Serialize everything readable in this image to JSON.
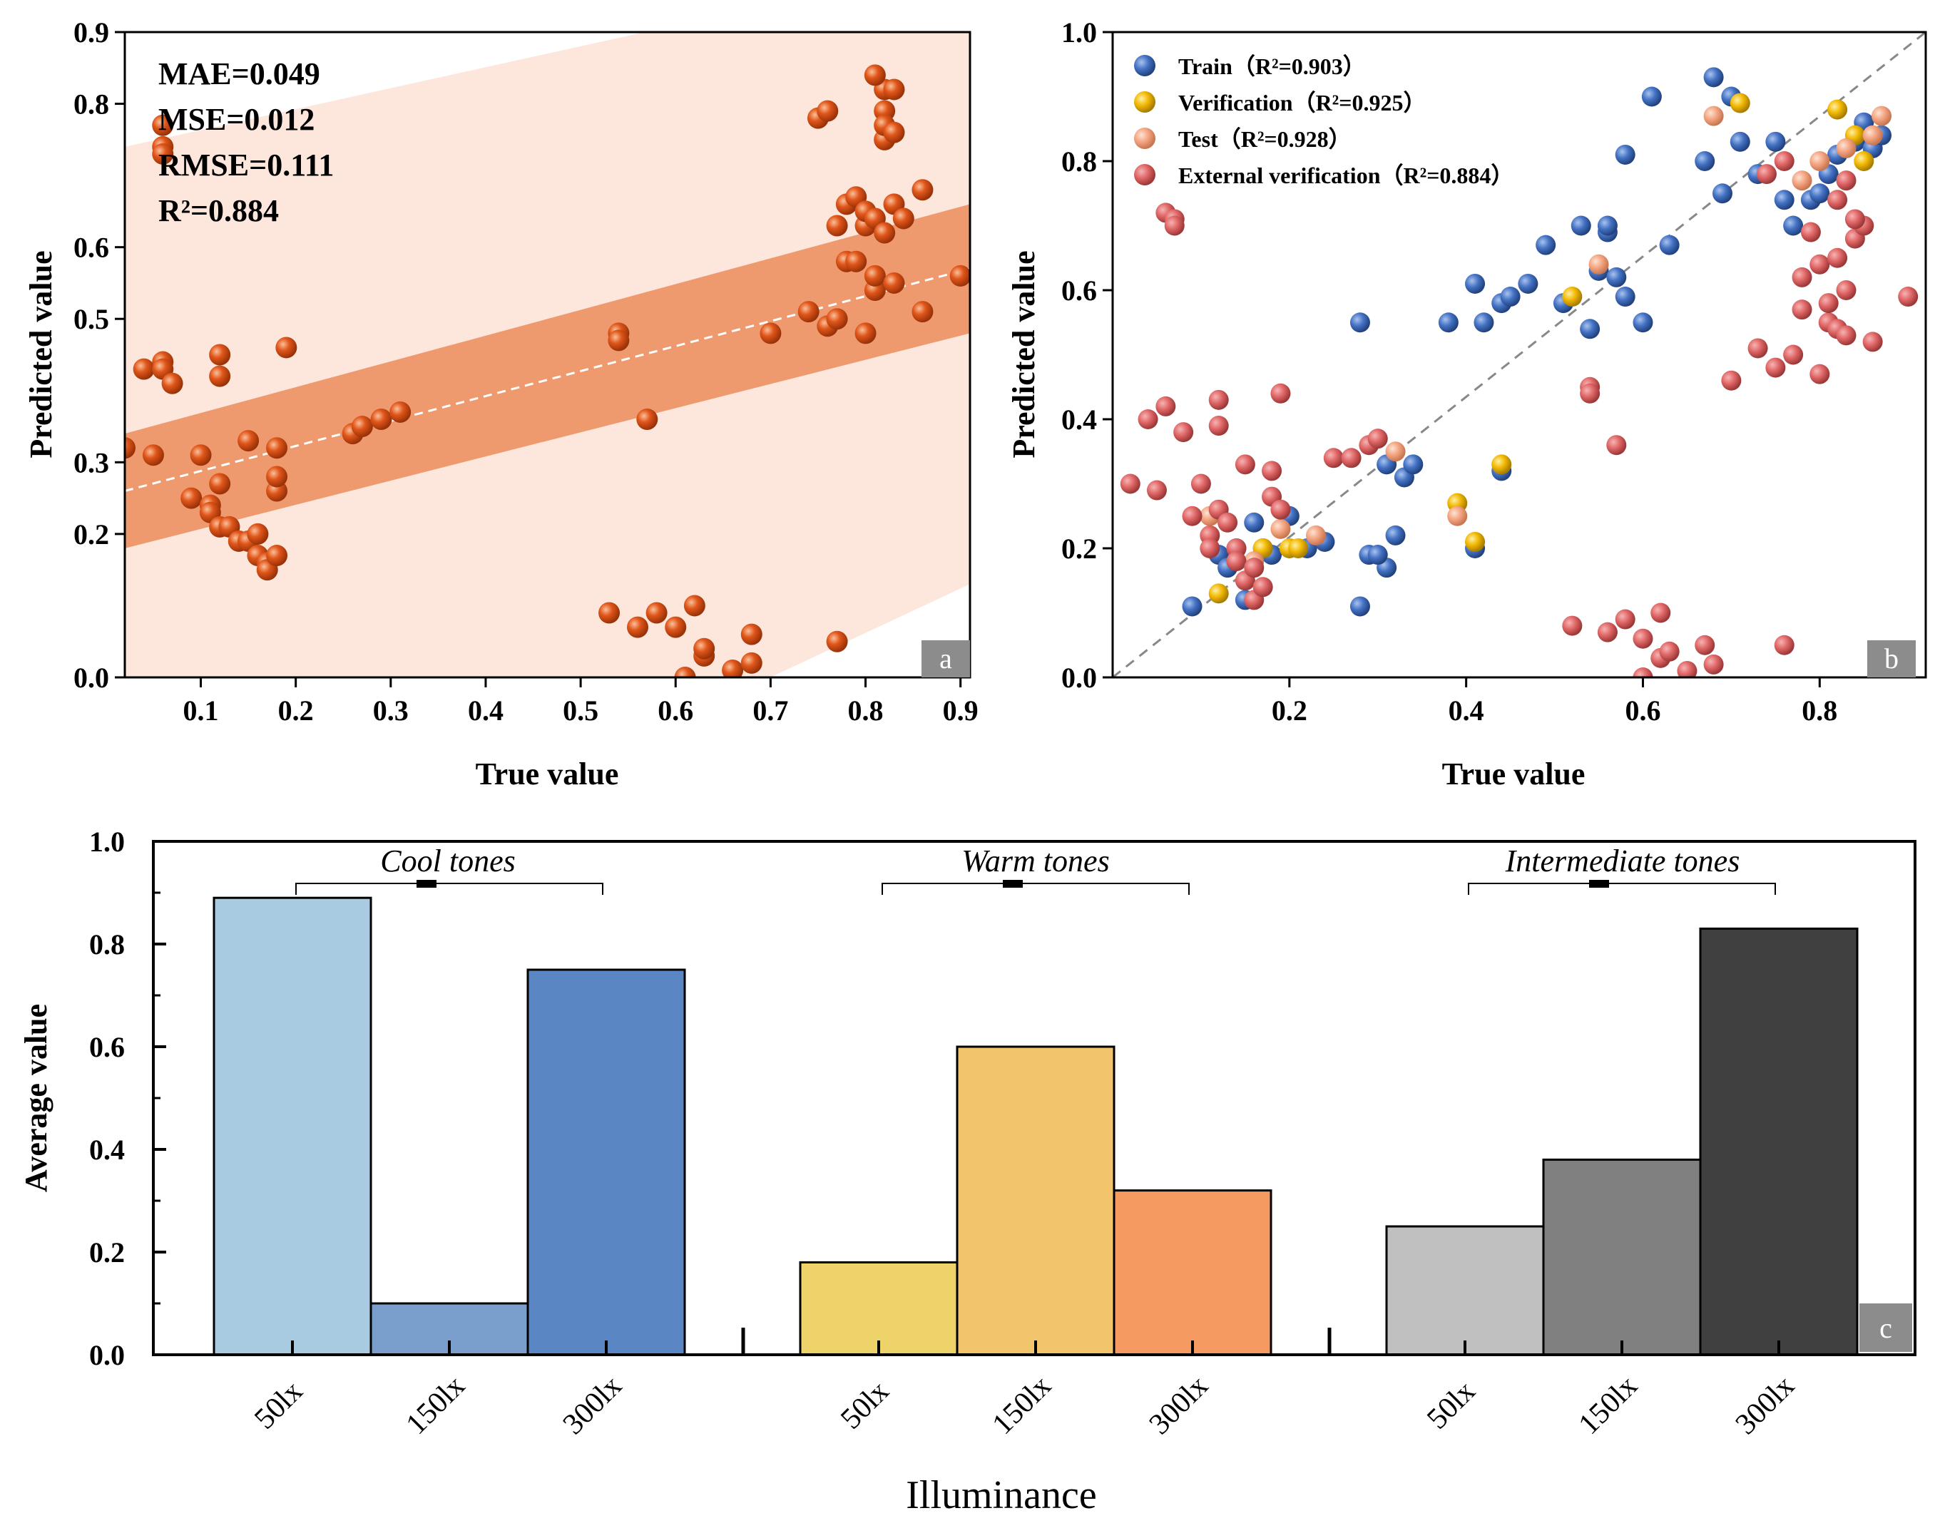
{
  "chart_data": [
    {
      "panel": "a",
      "type": "scatter",
      "xlabel": "True value",
      "ylabel": "Predicted value",
      "xlim": [
        0.02,
        0.91
      ],
      "ylim": [
        0.0,
        0.9
      ],
      "xticks": [
        "0.1",
        "0.2",
        "0.3",
        "0.4",
        "0.5",
        "0.6",
        "0.7",
        "0.8",
        "0.9"
      ],
      "yticks": [
        "0.0",
        "0.2",
        "0.3",
        "0.5",
        "0.6",
        "0.8",
        "0.9"
      ],
      "stats": {
        "mae": "MAE=0.049",
        "mse": "MSE=0.012",
        "rmse": "RMSE=0.111",
        "r2": "R²=0.884"
      },
      "panel_letter": "a",
      "colors": {
        "point": "#e0561a",
        "band_outer": "#fde7dc",
        "band_inner": "#ee9a6e",
        "fit": "#ffffff"
      },
      "fit_line": {
        "x": [
          0.02,
          0.91
        ],
        "y": [
          0.26,
          0.57
        ]
      },
      "confidence_band": {
        "x": [
          0.02,
          0.91
        ],
        "lower": [
          0.18,
          0.48
        ],
        "upper": [
          0.34,
          0.66
        ]
      },
      "prediction_band": {
        "x": [
          0.02,
          0.91
        ],
        "lower": [
          -0.42,
          0.13
        ],
        "upper": [
          0.74,
          1.0
        ]
      },
      "points": [
        [
          0.06,
          0.77
        ],
        [
          0.06,
          0.74
        ],
        [
          0.06,
          0.73
        ],
        [
          0.02,
          0.32
        ],
        [
          0.04,
          0.43
        ],
        [
          0.05,
          0.31
        ],
        [
          0.06,
          0.44
        ],
        [
          0.06,
          0.43
        ],
        [
          0.07,
          0.41
        ],
        [
          0.1,
          0.31
        ],
        [
          0.09,
          0.25
        ],
        [
          0.11,
          0.24
        ],
        [
          0.11,
          0.23
        ],
        [
          0.12,
          0.42
        ],
        [
          0.12,
          0.45
        ],
        [
          0.12,
          0.21
        ],
        [
          0.13,
          0.21
        ],
        [
          0.12,
          0.27
        ],
        [
          0.14,
          0.19
        ],
        [
          0.15,
          0.33
        ],
        [
          0.15,
          0.19
        ],
        [
          0.16,
          0.2
        ],
        [
          0.16,
          0.17
        ],
        [
          0.17,
          0.16
        ],
        [
          0.17,
          0.15
        ],
        [
          0.18,
          0.17
        ],
        [
          0.18,
          0.32
        ],
        [
          0.18,
          0.26
        ],
        [
          0.18,
          0.28
        ],
        [
          0.19,
          0.46
        ],
        [
          0.26,
          0.34
        ],
        [
          0.27,
          0.35
        ],
        [
          0.29,
          0.36
        ],
        [
          0.31,
          0.37
        ],
        [
          0.54,
          0.48
        ],
        [
          0.54,
          0.47
        ],
        [
          0.57,
          0.36
        ],
        [
          0.53,
          0.09
        ],
        [
          0.56,
          0.07
        ],
        [
          0.58,
          0.09
        ],
        [
          0.6,
          0.07
        ],
        [
          0.62,
          0.1
        ],
        [
          0.61,
          0.0
        ],
        [
          0.63,
          0.03
        ],
        [
          0.63,
          0.04
        ],
        [
          0.66,
          0.01
        ],
        [
          0.68,
          0.06
        ],
        [
          0.68,
          0.02
        ],
        [
          0.7,
          0.48
        ],
        [
          0.74,
          0.51
        ],
        [
          0.75,
          0.78
        ],
        [
          0.76,
          0.79
        ],
        [
          0.76,
          0.49
        ],
        [
          0.77,
          0.5
        ],
        [
          0.78,
          0.58
        ],
        [
          0.77,
          0.63
        ],
        [
          0.78,
          0.66
        ],
        [
          0.79,
          0.67
        ],
        [
          0.79,
          0.58
        ],
        [
          0.8,
          0.48
        ],
        [
          0.8,
          0.63
        ],
        [
          0.8,
          0.65
        ],
        [
          0.81,
          0.54
        ],
        [
          0.81,
          0.56
        ],
        [
          0.81,
          0.64
        ],
        [
          0.82,
          0.75
        ],
        [
          0.82,
          0.79
        ],
        [
          0.82,
          0.82
        ],
        [
          0.83,
          0.82
        ],
        [
          0.82,
          0.62
        ],
        [
          0.83,
          0.55
        ],
        [
          0.83,
          0.66
        ],
        [
          0.84,
          0.64
        ],
        [
          0.86,
          0.68
        ],
        [
          0.86,
          0.51
        ],
        [
          0.9,
          0.56
        ],
        [
          0.77,
          0.05
        ],
        [
          0.81,
          0.84
        ],
        [
          0.82,
          0.77
        ],
        [
          0.83,
          0.76
        ]
      ]
    },
    {
      "panel": "b",
      "type": "scatter",
      "xlabel": "True value",
      "ylabel": "Predicted value",
      "xlim": [
        0.0,
        0.92
      ],
      "ylim": [
        0.0,
        1.0
      ],
      "xticks": [
        "0.2",
        "0.4",
        "0.6",
        "0.8"
      ],
      "yticks": [
        "0.0",
        "0.2",
        "0.4",
        "0.6",
        "0.8",
        "1.0"
      ],
      "panel_letter": "b",
      "series": [
        {
          "name": "Train（R²=0.903）",
          "color": "#4472c4",
          "points": [
            [
              0.09,
              0.11
            ],
            [
              0.12,
              0.19
            ],
            [
              0.13,
              0.17
            ],
            [
              0.14,
              0.2
            ],
            [
              0.15,
              0.12
            ],
            [
              0.16,
              0.24
            ],
            [
              0.17,
              0.2
            ],
            [
              0.18,
              0.19
            ],
            [
              0.2,
              0.25
            ],
            [
              0.22,
              0.2
            ],
            [
              0.24,
              0.21
            ],
            [
              0.28,
              0.11
            ],
            [
              0.28,
              0.55
            ],
            [
              0.29,
              0.19
            ],
            [
              0.31,
              0.17
            ],
            [
              0.32,
              0.22
            ],
            [
              0.31,
              0.33
            ],
            [
              0.33,
              0.31
            ],
            [
              0.34,
              0.33
            ],
            [
              0.38,
              0.55
            ],
            [
              0.41,
              0.61
            ],
            [
              0.42,
              0.55
            ],
            [
              0.44,
              0.58
            ],
            [
              0.45,
              0.59
            ],
            [
              0.47,
              0.61
            ],
            [
              0.49,
              0.67
            ],
            [
              0.51,
              0.58
            ],
            [
              0.53,
              0.7
            ],
            [
              0.54,
              0.54
            ],
            [
              0.55,
              0.63
            ],
            [
              0.56,
              0.69
            ],
            [
              0.57,
              0.62
            ],
            [
              0.58,
              0.59
            ],
            [
              0.58,
              0.81
            ],
            [
              0.6,
              0.55
            ],
            [
              0.61,
              0.9
            ],
            [
              0.63,
              0.67
            ],
            [
              0.67,
              0.8
            ],
            [
              0.68,
              0.93
            ],
            [
              0.69,
              0.75
            ],
            [
              0.7,
              0.9
            ],
            [
              0.71,
              0.83
            ],
            [
              0.73,
              0.78
            ],
            [
              0.75,
              0.83
            ],
            [
              0.76,
              0.74
            ],
            [
              0.77,
              0.7
            ],
            [
              0.79,
              0.74
            ],
            [
              0.8,
              0.75
            ],
            [
              0.81,
              0.78
            ],
            [
              0.82,
              0.81
            ],
            [
              0.84,
              0.83
            ],
            [
              0.85,
              0.86
            ],
            [
              0.86,
              0.82
            ],
            [
              0.87,
              0.84
            ],
            [
              0.3,
              0.19
            ],
            [
              0.41,
              0.2
            ],
            [
              0.44,
              0.32
            ],
            [
              0.56,
              0.7
            ]
          ]
        },
        {
          "name": "Verification（R²=0.925）",
          "color": "#f2b800",
          "points": [
            [
              0.12,
              0.13
            ],
            [
              0.17,
              0.2
            ],
            [
              0.2,
              0.2
            ],
            [
              0.21,
              0.2
            ],
            [
              0.39,
              0.27
            ],
            [
              0.41,
              0.21
            ],
            [
              0.44,
              0.33
            ],
            [
              0.52,
              0.59
            ],
            [
              0.71,
              0.89
            ],
            [
              0.82,
              0.88
            ],
            [
              0.84,
              0.84
            ],
            [
              0.85,
              0.8
            ]
          ]
        },
        {
          "name": "Test（R²=0.928）",
          "color": "#f4a582",
          "points": [
            [
              0.11,
              0.25
            ],
            [
              0.16,
              0.18
            ],
            [
              0.19,
              0.23
            ],
            [
              0.23,
              0.22
            ],
            [
              0.32,
              0.35
            ],
            [
              0.39,
              0.25
            ],
            [
              0.55,
              0.64
            ],
            [
              0.68,
              0.87
            ],
            [
              0.78,
              0.77
            ],
            [
              0.8,
              0.8
            ],
            [
              0.83,
              0.82
            ],
            [
              0.86,
              0.84
            ],
            [
              0.87,
              0.87
            ]
          ]
        },
        {
          "name": "External verification（R²=0.884）",
          "color": "#e06666",
          "points": [
            [
              0.02,
              0.3
            ],
            [
              0.04,
              0.4
            ],
            [
              0.05,
              0.29
            ],
            [
              0.06,
              0.42
            ],
            [
              0.06,
              0.72
            ],
            [
              0.07,
              0.71
            ],
            [
              0.07,
              0.7
            ],
            [
              0.08,
              0.38
            ],
            [
              0.09,
              0.25
            ],
            [
              0.1,
              0.3
            ],
            [
              0.11,
              0.22
            ],
            [
              0.11,
              0.2
            ],
            [
              0.12,
              0.39
            ],
            [
              0.12,
              0.43
            ],
            [
              0.12,
              0.26
            ],
            [
              0.13,
              0.24
            ],
            [
              0.14,
              0.2
            ],
            [
              0.14,
              0.18
            ],
            [
              0.15,
              0.33
            ],
            [
              0.15,
              0.15
            ],
            [
              0.16,
              0.17
            ],
            [
              0.16,
              0.12
            ],
            [
              0.17,
              0.14
            ],
            [
              0.18,
              0.32
            ],
            [
              0.18,
              0.28
            ],
            [
              0.19,
              0.44
            ],
            [
              0.19,
              0.26
            ],
            [
              0.25,
              0.34
            ],
            [
              0.27,
              0.34
            ],
            [
              0.29,
              0.36
            ],
            [
              0.3,
              0.37
            ],
            [
              0.52,
              0.08
            ],
            [
              0.54,
              0.45
            ],
            [
              0.54,
              0.44
            ],
            [
              0.56,
              0.07
            ],
            [
              0.57,
              0.36
            ],
            [
              0.58,
              0.09
            ],
            [
              0.6,
              0.06
            ],
            [
              0.6,
              0.0
            ],
            [
              0.62,
              0.1
            ],
            [
              0.62,
              0.03
            ],
            [
              0.63,
              0.04
            ],
            [
              0.65,
              0.01
            ],
            [
              0.67,
              0.05
            ],
            [
              0.68,
              0.02
            ],
            [
              0.7,
              0.46
            ],
            [
              0.73,
              0.51
            ],
            [
              0.74,
              0.78
            ],
            [
              0.75,
              0.48
            ],
            [
              0.76,
              0.8
            ],
            [
              0.76,
              0.05
            ],
            [
              0.77,
              0.5
            ],
            [
              0.78,
              0.57
            ],
            [
              0.78,
              0.62
            ],
            [
              0.79,
              0.69
            ],
            [
              0.8,
              0.47
            ],
            [
              0.8,
              0.64
            ],
            [
              0.81,
              0.55
            ],
            [
              0.81,
              0.58
            ],
            [
              0.82,
              0.54
            ],
            [
              0.82,
              0.65
            ],
            [
              0.83,
              0.6
            ],
            [
              0.83,
              0.53
            ],
            [
              0.84,
              0.68
            ],
            [
              0.85,
              0.7
            ],
            [
              0.86,
              0.52
            ],
            [
              0.9,
              0.59
            ],
            [
              0.82,
              0.74
            ],
            [
              0.83,
              0.77
            ],
            [
              0.84,
              0.71
            ]
          ]
        }
      ]
    },
    {
      "panel": "c",
      "type": "bar",
      "xlabel": "Illuminance",
      "ylabel": "Average value",
      "ylim": [
        0.0,
        1.0
      ],
      "yticks": [
        "0.0",
        "0.2",
        "0.4",
        "0.6",
        "0.8",
        "1.0"
      ],
      "panel_letter": "c",
      "groups": [
        {
          "name": "Cool tones",
          "categories": [
            "50lx",
            "150lx",
            "300lx"
          ],
          "values": [
            0.89,
            0.1,
            0.75
          ],
          "colors": [
            "#a8cbe2",
            "#7b9fcd",
            "#5b86c4"
          ]
        },
        {
          "name": "Warm tones",
          "categories": [
            "50lx",
            "150lx",
            "300lx"
          ],
          "values": [
            0.18,
            0.6,
            0.32
          ],
          "colors": [
            "#eed36b",
            "#f2c46b",
            "#f59b62"
          ]
        },
        {
          "name": "Intermediate tones",
          "categories": [
            "50lx",
            "150lx",
            "300lx"
          ],
          "values": [
            0.25,
            0.38,
            0.83
          ],
          "colors": [
            "#c0c0c0",
            "#808080",
            "#404040"
          ]
        }
      ]
    }
  ]
}
